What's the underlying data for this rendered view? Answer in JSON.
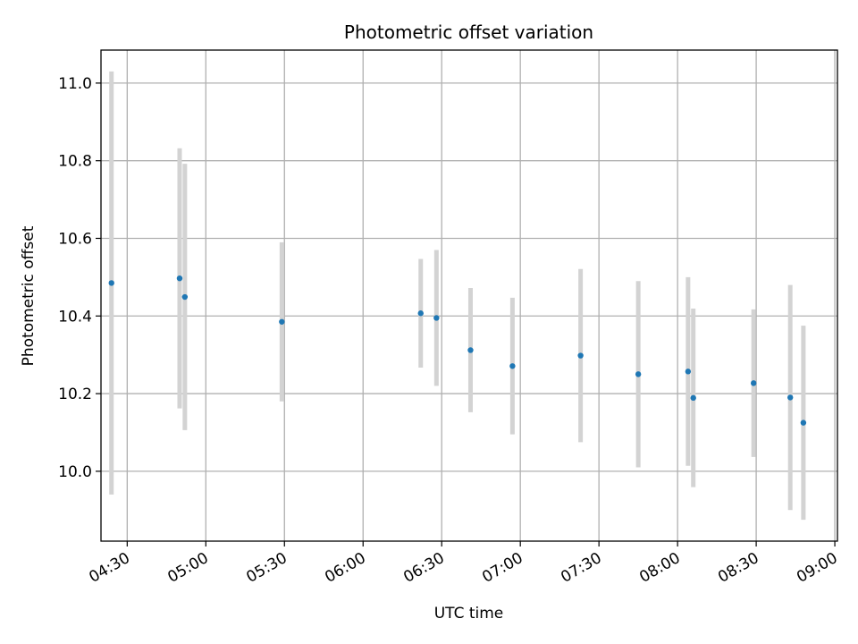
{
  "chart_data": {
    "type": "scatter",
    "title": "Photometric offset variation",
    "xlabel": "UTC time",
    "ylabel": "Photometric offset",
    "xlim": [
      "04:20",
      "09:01"
    ],
    "ylim": [
      9.82,
      11.085
    ],
    "xticks": [
      "04:30",
      "05:00",
      "05:30",
      "06:00",
      "06:30",
      "07:00",
      "07:30",
      "08:00",
      "08:30",
      "09:00"
    ],
    "yticks": [
      "10.0",
      "10.2",
      "10.4",
      "10.6",
      "10.8",
      "11.0"
    ],
    "grid": true,
    "colors": {
      "point": "#1f77b4",
      "errorbar": "#d3d3d3",
      "grid": "#b0b0b0"
    },
    "series": [
      {
        "points": [
          {
            "x": "04:24",
            "y": 10.485,
            "err": 0.545
          },
          {
            "x": "04:50",
            "y": 10.497,
            "err": 0.335
          },
          {
            "x": "04:52",
            "y": 10.449,
            "err": 0.343
          },
          {
            "x": "05:29",
            "y": 10.385,
            "err": 0.205
          },
          {
            "x": "06:22",
            "y": 10.407,
            "err": 0.14
          },
          {
            "x": "06:28",
            "y": 10.395,
            "err": 0.175
          },
          {
            "x": "06:41",
            "y": 10.312,
            "err": 0.16
          },
          {
            "x": "06:57",
            "y": 10.271,
            "err": 0.176
          },
          {
            "x": "07:23",
            "y": 10.298,
            "err": 0.223
          },
          {
            "x": "07:45",
            "y": 10.25,
            "err": 0.24
          },
          {
            "x": "08:04",
            "y": 10.257,
            "err": 0.243
          },
          {
            "x": "08:06",
            "y": 10.189,
            "err": 0.23
          },
          {
            "x": "08:29",
            "y": 10.227,
            "err": 0.19
          },
          {
            "x": "08:43",
            "y": 10.19,
            "err": 0.29
          },
          {
            "x": "08:48",
            "y": 10.125,
            "err": 0.25
          }
        ]
      }
    ]
  }
}
